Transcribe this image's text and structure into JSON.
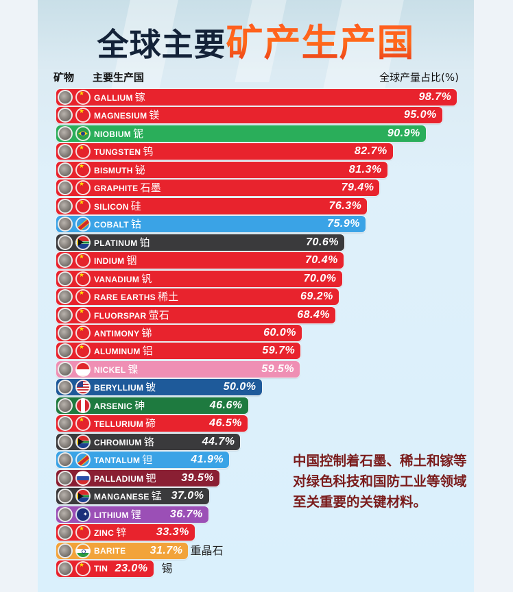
{
  "header": {
    "title_part1": "全球主要",
    "title_part2": "矿产生产国",
    "col_mineral": "矿物",
    "col_country": "主要生产国",
    "col_share": "全球产量占比(%)"
  },
  "note": "中国控制着石墨、稀土和镓等对绿色科技和国防工业等领域至关重要的关键材料。",
  "colors": {
    "china": "#e8232d",
    "brazil": "#2aae5a",
    "drc": "#3aa3e6",
    "south_africa": "#3a3a3c",
    "indonesia": "#ef8fb4",
    "usa": "#1e5a9a",
    "peru": "#1e7a3f",
    "russia": "#8a1f33",
    "australia": "#9b4fb6",
    "india": "#f2a33a"
  },
  "chart_data": {
    "type": "bar",
    "orientation": "horizontal",
    "title": "全球主要矿产生产国",
    "xlabel": "全球产量占比(%)",
    "ylabel": "矿物 / 主要生产国",
    "xlim": [
      0,
      100
    ],
    "grid": false,
    "legend": "none (country shown by flag icon per bar)",
    "rows": [
      {
        "mineral": "GALLIUM",
        "zh": "镓",
        "country": "China",
        "flag": "cn",
        "value": 98.7,
        "display": "98.7%"
      },
      {
        "mineral": "MAGNESIUM",
        "zh": "镁",
        "country": "China",
        "flag": "cn",
        "value": 95.0,
        "display": "95.0%"
      },
      {
        "mineral": "NIOBIUM",
        "zh": "铌",
        "country": "Brazil",
        "flag": "br",
        "value": 90.9,
        "display": "90.9%"
      },
      {
        "mineral": "TUNGSTEN",
        "zh": "钨",
        "country": "China",
        "flag": "cn",
        "value": 82.7,
        "display": "82.7%"
      },
      {
        "mineral": "BISMUTH",
        "zh": "铋",
        "country": "China",
        "flag": "cn",
        "value": 81.3,
        "display": "81.3%"
      },
      {
        "mineral": "GRAPHITE",
        "zh": "石墨",
        "country": "China",
        "flag": "cn",
        "value": 79.4,
        "display": "79.4%"
      },
      {
        "mineral": "SILICON",
        "zh": "硅",
        "country": "China",
        "flag": "cn",
        "value": 76.3,
        "display": "76.3%"
      },
      {
        "mineral": "COBALT",
        "zh": "钴",
        "country": "DR Congo",
        "flag": "cd",
        "value": 75.9,
        "display": "75.9%"
      },
      {
        "mineral": "PLATINUM",
        "zh": "铂",
        "country": "South Africa",
        "flag": "za",
        "value": 70.6,
        "display": "70.6%"
      },
      {
        "mineral": "INDIUM",
        "zh": "铟",
        "country": "China",
        "flag": "cn",
        "value": 70.4,
        "display": "70.4%"
      },
      {
        "mineral": "VANADIUM",
        "zh": "钒",
        "country": "China",
        "flag": "cn",
        "value": 70.0,
        "display": "70.0%"
      },
      {
        "mineral": "RARE EARTHS",
        "zh": "稀土",
        "country": "China",
        "flag": "cn",
        "value": 69.2,
        "display": "69.2%"
      },
      {
        "mineral": "FLUORSPAR",
        "zh": "萤石",
        "country": "China",
        "flag": "cn",
        "value": 68.4,
        "display": "68.4%"
      },
      {
        "mineral": "ANTIMONY",
        "zh": "锑",
        "country": "China",
        "flag": "cn",
        "value": 60.0,
        "display": "60.0%"
      },
      {
        "mineral": "ALUMINUM",
        "zh": "铝",
        "country": "China",
        "flag": "cn",
        "value": 59.7,
        "display": "59.7%"
      },
      {
        "mineral": "NICKEL",
        "zh": "镍",
        "country": "Indonesia",
        "flag": "id",
        "value": 59.5,
        "display": "59.5%"
      },
      {
        "mineral": "BERYLLIUM",
        "zh": "铍",
        "country": "USA",
        "flag": "us",
        "value": 50.0,
        "display": "50.0%"
      },
      {
        "mineral": "ARSENIC",
        "zh": "砷",
        "country": "Peru",
        "flag": "pe",
        "value": 46.6,
        "display": "46.6%"
      },
      {
        "mineral": "TELLURIUM",
        "zh": "碲",
        "country": "China",
        "flag": "cn",
        "value": 46.5,
        "display": "46.5%"
      },
      {
        "mineral": "CHROMIUM",
        "zh": "铬",
        "country": "South Africa",
        "flag": "za",
        "value": 44.7,
        "display": "44.7%"
      },
      {
        "mineral": "TANTALUM",
        "zh": "钽",
        "country": "DR Congo",
        "flag": "cd",
        "value": 41.9,
        "display": "41.9%"
      },
      {
        "mineral": "PALLADIUM",
        "zh": "钯",
        "country": "Russia",
        "flag": "ru",
        "value": 39.5,
        "display": "39.5%"
      },
      {
        "mineral": "MANGANESE",
        "zh": "锰",
        "country": "South Africa",
        "flag": "za",
        "value": 37.0,
        "display": "37.0%"
      },
      {
        "mineral": "LITHIUM",
        "zh": "锂",
        "country": "Australia",
        "flag": "au",
        "value": 36.7,
        "display": "36.7%"
      },
      {
        "mineral": "ZINC",
        "zh": "锌",
        "country": "China",
        "flag": "cn",
        "value": 33.3,
        "display": "33.3%"
      },
      {
        "mineral": "BARITE",
        "zh": "重晶石",
        "country": "India",
        "flag": "in",
        "value": 31.7,
        "display": "31.7%",
        "zh_outside": true
      },
      {
        "mineral": "TIN",
        "zh": "锡",
        "country": "China",
        "flag": "cn",
        "value": 23.0,
        "display": "23.0%",
        "zh_outside": true
      }
    ]
  }
}
